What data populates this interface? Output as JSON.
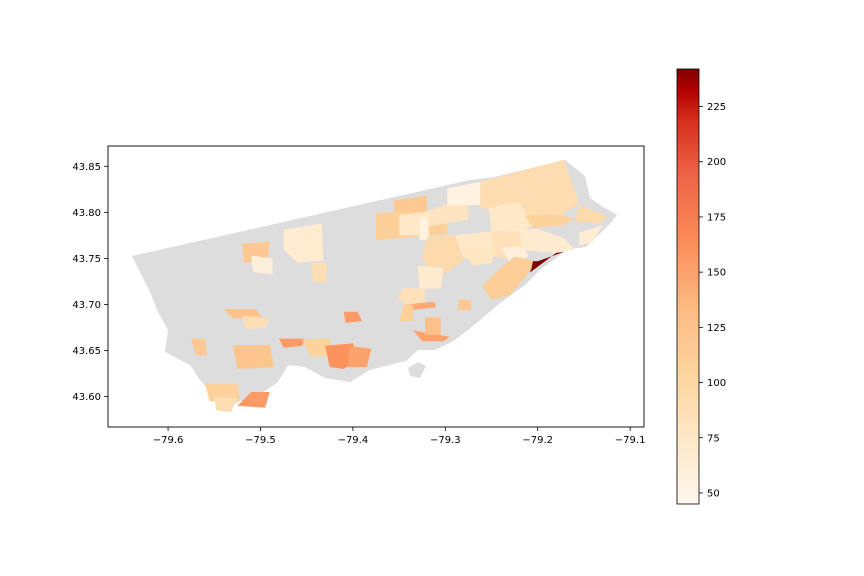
{
  "chart_data": {
    "type": "choropleth",
    "x_ticks": [
      -79.6,
      -79.5,
      -79.4,
      -79.3,
      -79.2,
      -79.1
    ],
    "x_tick_labels": [
      "−79.6",
      "−79.5",
      "−79.4",
      "−79.3",
      "−79.2",
      "−79.1"
    ],
    "y_ticks": [
      43.6,
      43.65,
      43.7,
      43.75,
      43.8,
      43.85
    ],
    "y_tick_labels": [
      "43.60",
      "43.65",
      "43.70",
      "43.75",
      "43.80",
      "43.85"
    ],
    "xlim": [
      -79.665,
      -79.085
    ],
    "ylim": [
      43.567,
      43.872
    ],
    "colorbar": {
      "colormap": "OrRd",
      "range": [
        45,
        242
      ],
      "ticks": [
        50,
        75,
        100,
        125,
        150,
        175,
        200,
        225
      ],
      "tick_labels": [
        "50",
        "75",
        "100",
        "125",
        "150",
        "175",
        "200",
        "225"
      ]
    },
    "no_data_color": "#dddddd",
    "regions": [
      {
        "value": 118,
        "outline": [
          [
            -79.52,
            43.766
          ],
          [
            -79.49,
            43.768
          ],
          [
            -79.492,
            43.748
          ],
          [
            -79.518,
            43.745
          ]
        ]
      },
      {
        "value": 68,
        "outline": [
          [
            -79.475,
            43.781
          ],
          [
            -79.434,
            43.788
          ],
          [
            -79.432,
            43.748
          ],
          [
            -79.46,
            43.745
          ],
          [
            -79.475,
            43.76
          ]
        ]
      },
      {
        "value": 60,
        "outline": [
          [
            -79.51,
            43.753
          ],
          [
            -79.487,
            43.75
          ],
          [
            -79.487,
            43.733
          ],
          [
            -79.508,
            43.735
          ]
        ]
      },
      {
        "value": 90,
        "outline": [
          [
            -79.445,
            43.745
          ],
          [
            -79.428,
            43.745
          ],
          [
            -79.429,
            43.723
          ],
          [
            -79.443,
            43.725
          ]
        ]
      },
      {
        "value": 118,
        "outline": [
          [
            -79.356,
            43.813
          ],
          [
            -79.32,
            43.818
          ],
          [
            -79.32,
            43.8
          ],
          [
            -79.355,
            43.797
          ]
        ]
      },
      {
        "value": 110,
        "outline": [
          [
            -79.375,
            43.799
          ],
          [
            -79.32,
            43.802
          ],
          [
            -79.298,
            43.79
          ],
          [
            -79.298,
            43.776
          ],
          [
            -79.375,
            43.77
          ]
        ]
      },
      {
        "value": 75,
        "outline": [
          [
            -79.35,
            43.797
          ],
          [
            -79.318,
            43.801
          ],
          [
            -79.318,
            43.775
          ],
          [
            -79.35,
            43.775
          ]
        ]
      },
      {
        "value": 80,
        "outline": [
          [
            -79.318,
            43.802
          ],
          [
            -79.295,
            43.81
          ],
          [
            -79.275,
            43.808
          ],
          [
            -79.275,
            43.792
          ],
          [
            -79.298,
            43.788
          ],
          [
            -79.318,
            43.785
          ]
        ]
      },
      {
        "value": 55,
        "outline": [
          [
            -79.328,
            43.794
          ],
          [
            -79.318,
            43.794
          ],
          [
            -79.318,
            43.77
          ],
          [
            -79.328,
            43.77
          ]
        ]
      },
      {
        "value": 55,
        "outline": [
          [
            -79.298,
            43.826
          ],
          [
            -79.262,
            43.833
          ],
          [
            -79.262,
            43.808
          ],
          [
            -79.298,
            43.808
          ]
        ]
      },
      {
        "value": 92,
        "outline": [
          [
            -79.262,
            43.833
          ],
          [
            -79.172,
            43.857
          ],
          [
            -79.155,
            43.81
          ],
          [
            -79.185,
            43.79
          ],
          [
            -79.215,
            43.795
          ],
          [
            -79.262,
            43.805
          ]
        ]
      },
      {
        "value": 75,
        "outline": [
          [
            -79.253,
            43.805
          ],
          [
            -79.22,
            43.812
          ],
          [
            -79.205,
            43.786
          ],
          [
            -79.225,
            43.776
          ],
          [
            -79.25,
            43.779
          ]
        ]
      },
      {
        "value": 105,
        "outline": [
          [
            -79.214,
            43.796
          ],
          [
            -79.185,
            43.798
          ],
          [
            -79.16,
            43.794
          ],
          [
            -79.172,
            43.786
          ],
          [
            -79.205,
            43.783
          ]
        ]
      },
      {
        "value": 95,
        "outline": [
          [
            -79.155,
            43.808
          ],
          [
            -79.125,
            43.796
          ],
          [
            -79.132,
            43.788
          ],
          [
            -79.16,
            43.79
          ]
        ]
      },
      {
        "value": 70,
        "outline": [
          [
            -79.225,
            43.782
          ],
          [
            -79.2,
            43.782
          ],
          [
            -79.172,
            43.772
          ],
          [
            -79.16,
            43.76
          ],
          [
            -79.18,
            43.756
          ],
          [
            -79.225,
            43.76
          ]
        ]
      },
      {
        "value": 65,
        "outline": [
          [
            -79.155,
            43.778
          ],
          [
            -79.13,
            43.786
          ],
          [
            -79.14,
            43.768
          ],
          [
            -79.155,
            43.764
          ]
        ]
      },
      {
        "value": 95,
        "outline": [
          [
            -79.32,
            43.773
          ],
          [
            -79.29,
            43.775
          ],
          [
            -79.28,
            43.748
          ],
          [
            -79.3,
            43.734
          ],
          [
            -79.315,
            43.734
          ],
          [
            -79.325,
            43.75
          ]
        ]
      },
      {
        "value": 75,
        "outline": [
          [
            -79.29,
            43.775
          ],
          [
            -79.245,
            43.78
          ],
          [
            -79.245,
            43.752
          ],
          [
            -79.262,
            43.748
          ],
          [
            -79.28,
            43.75
          ]
        ]
      },
      {
        "value": 85,
        "outline": [
          [
            -79.25,
            43.779
          ],
          [
            -79.22,
            43.78
          ],
          [
            -79.215,
            43.756
          ],
          [
            -79.235,
            43.75
          ],
          [
            -79.248,
            43.752
          ]
        ]
      },
      {
        "value": 60,
        "outline": [
          [
            -79.24,
            43.762
          ],
          [
            -79.215,
            43.763
          ],
          [
            -79.21,
            43.752
          ],
          [
            -79.23,
            43.745
          ]
        ]
      },
      {
        "value": 78,
        "outline": [
          [
            -79.285,
            43.762
          ],
          [
            -79.245,
            43.764
          ],
          [
            -79.25,
            43.745
          ],
          [
            -79.27,
            43.742
          ]
        ]
      },
      {
        "value": 242,
        "outline": [
          [
            -79.2,
            43.747
          ],
          [
            -79.172,
            43.757
          ],
          [
            -79.18,
            43.756
          ],
          [
            -79.208,
            43.735
          ],
          [
            -79.207,
            43.747
          ]
        ]
      },
      {
        "value": 112,
        "outline": [
          [
            -79.225,
            43.752
          ],
          [
            -79.205,
            43.748
          ],
          [
            -79.207,
            43.738
          ],
          [
            -79.23,
            43.71
          ],
          [
            -79.25,
            43.705
          ],
          [
            -79.26,
            43.72
          ],
          [
            -79.24,
            43.74
          ]
        ]
      },
      {
        "value": 70,
        "outline": [
          [
            -79.33,
            43.742
          ],
          [
            -79.302,
            43.74
          ],
          [
            -79.305,
            43.717
          ],
          [
            -79.328,
            43.717
          ]
        ]
      },
      {
        "value": 85,
        "outline": [
          [
            -79.345,
            43.718
          ],
          [
            -79.322,
            43.717
          ],
          [
            -79.322,
            43.703
          ],
          [
            -79.34,
            43.7
          ],
          [
            -79.352,
            43.706
          ]
        ]
      },
      {
        "value": 145,
        "outline": [
          [
            -79.343,
            43.7
          ],
          [
            -79.312,
            43.703
          ],
          [
            -79.31,
            43.697
          ],
          [
            -79.335,
            43.694
          ]
        ]
      },
      {
        "value": 110,
        "outline": [
          [
            -79.345,
            43.7
          ],
          [
            -79.335,
            43.7
          ],
          [
            -79.335,
            43.682
          ],
          [
            -79.35,
            43.682
          ]
        ]
      },
      {
        "value": 118,
        "outline": [
          [
            -79.285,
            43.706
          ],
          [
            -79.272,
            43.704
          ],
          [
            -79.272,
            43.694
          ],
          [
            -79.287,
            43.694
          ]
        ]
      },
      {
        "value": 150,
        "outline": [
          [
            -79.335,
            43.672
          ],
          [
            -79.295,
            43.665
          ],
          [
            -79.302,
            43.66
          ],
          [
            -79.325,
            43.66
          ]
        ]
      },
      {
        "value": 128,
        "outline": [
          [
            -79.322,
            43.686
          ],
          [
            -79.305,
            43.686
          ],
          [
            -79.305,
            43.667
          ],
          [
            -79.322,
            43.667
          ]
        ]
      },
      {
        "value": 155,
        "outline": [
          [
            -79.41,
            43.692
          ],
          [
            -79.395,
            43.692
          ],
          [
            -79.39,
            43.682
          ],
          [
            -79.408,
            43.68
          ]
        ]
      },
      {
        "value": 118,
        "outline": [
          [
            -79.575,
            43.663
          ],
          [
            -79.56,
            43.663
          ],
          [
            -79.558,
            43.645
          ],
          [
            -79.57,
            43.645
          ]
        ]
      },
      {
        "value": 125,
        "outline": [
          [
            -79.54,
            43.695
          ],
          [
            -79.505,
            43.695
          ],
          [
            -79.498,
            43.685
          ],
          [
            -79.53,
            43.685
          ]
        ]
      },
      {
        "value": 88,
        "outline": [
          [
            -79.52,
            43.688
          ],
          [
            -79.49,
            43.685
          ],
          [
            -79.495,
            43.675
          ],
          [
            -79.515,
            43.673
          ]
        ]
      },
      {
        "value": 122,
        "outline": [
          [
            -79.53,
            43.656
          ],
          [
            -79.49,
            43.656
          ],
          [
            -79.485,
            43.632
          ],
          [
            -79.525,
            43.63
          ]
        ]
      },
      {
        "value": 155,
        "outline": [
          [
            -79.48,
            43.663
          ],
          [
            -79.452,
            43.663
          ],
          [
            -79.455,
            43.655
          ],
          [
            -79.475,
            43.653
          ]
        ]
      },
      {
        "value": 105,
        "outline": [
          [
            -79.455,
            43.662
          ],
          [
            -79.425,
            43.663
          ],
          [
            -79.42,
            43.645
          ],
          [
            -79.445,
            43.643
          ]
        ]
      },
      {
        "value": 160,
        "outline": [
          [
            -79.43,
            43.655
          ],
          [
            -79.4,
            43.658
          ],
          [
            -79.395,
            43.64
          ],
          [
            -79.41,
            43.63
          ],
          [
            -79.425,
            43.632
          ]
        ]
      },
      {
        "value": 150,
        "outline": [
          [
            -79.404,
            43.655
          ],
          [
            -79.38,
            43.652
          ],
          [
            -79.385,
            43.632
          ],
          [
            -79.405,
            43.632
          ]
        ]
      },
      {
        "value": 108,
        "outline": [
          [
            -79.56,
            43.614
          ],
          [
            -79.525,
            43.614
          ],
          [
            -79.522,
            43.595
          ],
          [
            -79.555,
            43.595
          ]
        ]
      },
      {
        "value": 90,
        "outline": [
          [
            -79.55,
            43.6
          ],
          [
            -79.525,
            43.598
          ],
          [
            -79.532,
            43.583
          ],
          [
            -79.548,
            43.585
          ]
        ]
      },
      {
        "value": 155,
        "outline": [
          [
            -79.51,
            43.605
          ],
          [
            -79.49,
            43.605
          ],
          [
            -79.495,
            43.588
          ],
          [
            -79.525,
            43.59
          ]
        ]
      }
    ]
  }
}
